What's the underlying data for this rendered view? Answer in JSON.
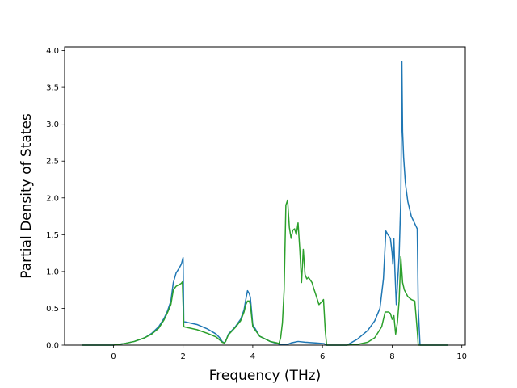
{
  "chart_data": {
    "type": "line",
    "title": "",
    "xlabel": "Frequency (THz)",
    "ylabel": "Partial Density of States",
    "xlim": [
      -1.4,
      10.1
    ],
    "ylim": [
      0.0,
      4.05
    ],
    "xticks": [
      0,
      2,
      4,
      6,
      8,
      10
    ],
    "yticks": [
      0.0,
      0.5,
      1.0,
      1.5,
      2.0,
      2.5,
      3.0,
      3.5,
      4.0
    ],
    "xtick_labels": [
      "0",
      "2",
      "4",
      "6",
      "8",
      "10"
    ],
    "ytick_labels": [
      "0.0",
      "0.5",
      "1.0",
      "1.5",
      "2.0",
      "2.5",
      "3.0",
      "3.5",
      "4.0"
    ],
    "grid": false,
    "legend": "none",
    "series": [
      {
        "color": "#1f77b4",
        "x": [
          -0.9,
          -0.5,
          0,
          0.3,
          0.6,
          0.9,
          1.1,
          1.3,
          1.45,
          1.55,
          1.65,
          1.72,
          1.8,
          1.88,
          1.95,
          2.0,
          2.02,
          2.4,
          2.7,
          2.95,
          3.05,
          3.12,
          3.18,
          3.22,
          3.3,
          3.5,
          3.65,
          3.75,
          3.8,
          3.85,
          3.9,
          3.93,
          4.0,
          4.2,
          4.5,
          4.7,
          4.8,
          5.0,
          5.1,
          5.2,
          5.3,
          5.5,
          5.8,
          6.05,
          6.1,
          6.7,
          7.0,
          7.3,
          7.5,
          7.65,
          7.75,
          7.82,
          7.88,
          7.95,
          8.0,
          8.02,
          8.05,
          8.08,
          8.12,
          8.15,
          8.2,
          8.25,
          8.28,
          8.3,
          8.33,
          8.38,
          8.45,
          8.55,
          8.65,
          8.72,
          8.75,
          8.8,
          9.2,
          9.6
        ],
        "y": [
          0.0,
          0.0,
          0.0,
          0.02,
          0.05,
          0.1,
          0.16,
          0.25,
          0.36,
          0.46,
          0.6,
          0.85,
          0.98,
          1.04,
          1.1,
          1.19,
          0.32,
          0.28,
          0.22,
          0.15,
          0.1,
          0.05,
          0.03,
          0.05,
          0.15,
          0.25,
          0.35,
          0.48,
          0.62,
          0.74,
          0.7,
          0.65,
          0.28,
          0.12,
          0.05,
          0.02,
          0.01,
          0.01,
          0.03,
          0.04,
          0.05,
          0.04,
          0.03,
          0.02,
          0.0,
          0.0,
          0.08,
          0.2,
          0.33,
          0.5,
          0.9,
          1.55,
          1.5,
          1.45,
          1.25,
          1.1,
          1.45,
          1.0,
          0.55,
          0.8,
          1.2,
          2.0,
          3.85,
          2.9,
          2.55,
          2.2,
          1.95,
          1.75,
          1.65,
          1.58,
          0.5,
          0.0,
          0.0,
          0.0
        ]
      },
      {
        "color": "#2ca02c",
        "x": [
          -0.9,
          -0.5,
          0,
          0.3,
          0.6,
          0.9,
          1.1,
          1.3,
          1.45,
          1.55,
          1.65,
          1.72,
          1.8,
          1.88,
          1.95,
          1.98,
          2.02,
          2.4,
          2.7,
          2.95,
          3.05,
          3.12,
          3.18,
          3.22,
          3.3,
          3.5,
          3.65,
          3.75,
          3.8,
          3.85,
          3.9,
          3.93,
          4.0,
          4.2,
          4.5,
          4.7,
          4.75,
          4.8,
          4.85,
          4.9,
          4.95,
          5.0,
          5.05,
          5.1,
          5.15,
          5.2,
          5.25,
          5.3,
          5.35,
          5.4,
          5.45,
          5.5,
          5.55,
          5.6,
          5.7,
          5.75,
          5.8,
          5.9,
          6.0,
          6.03,
          6.08,
          6.12,
          6.7,
          7.0,
          7.3,
          7.5,
          7.7,
          7.8,
          7.9,
          7.95,
          8.0,
          8.05,
          8.1,
          8.15,
          8.2,
          8.25,
          8.3,
          8.35,
          8.45,
          8.55,
          8.65,
          8.72,
          8.75,
          8.8,
          9.2,
          9.6
        ],
        "y": [
          0.0,
          0.0,
          0.0,
          0.02,
          0.05,
          0.1,
          0.15,
          0.23,
          0.34,
          0.44,
          0.55,
          0.75,
          0.8,
          0.82,
          0.84,
          0.86,
          0.25,
          0.21,
          0.16,
          0.11,
          0.07,
          0.04,
          0.03,
          0.05,
          0.14,
          0.24,
          0.33,
          0.45,
          0.55,
          0.6,
          0.6,
          0.55,
          0.25,
          0.12,
          0.05,
          0.03,
          0.02,
          0.1,
          0.3,
          0.75,
          1.9,
          1.97,
          1.6,
          1.45,
          1.56,
          1.58,
          1.5,
          1.66,
          1.3,
          0.85,
          1.3,
          0.96,
          0.9,
          0.92,
          0.85,
          0.77,
          0.7,
          0.55,
          0.6,
          0.62,
          0.2,
          0.0,
          0.0,
          0.01,
          0.04,
          0.1,
          0.25,
          0.45,
          0.45,
          0.43,
          0.35,
          0.4,
          0.15,
          0.3,
          0.6,
          1.2,
          0.85,
          0.75,
          0.66,
          0.62,
          0.6,
          0.2,
          0.0,
          0.0,
          0.0,
          0.0
        ]
      }
    ]
  }
}
